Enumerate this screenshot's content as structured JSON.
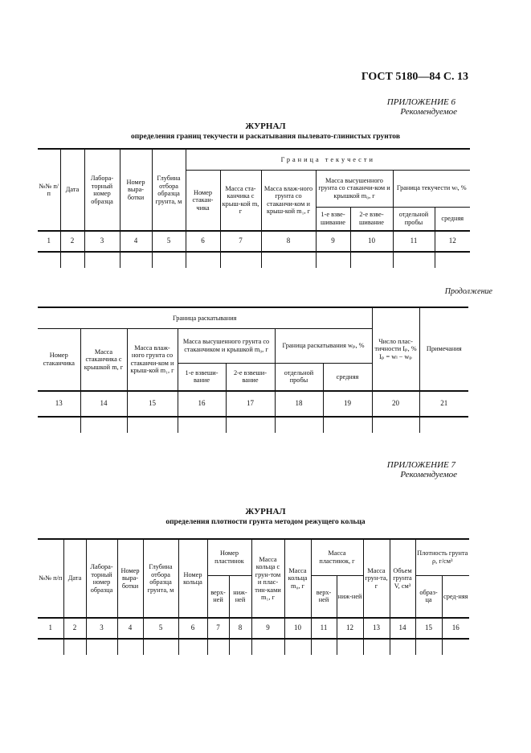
{
  "header": {
    "gost": "ГОСТ 5180—84 С. 13"
  },
  "appendix6": {
    "title": "ПРИЛОЖЕНИЕ 6",
    "note": "Рекомендуемое"
  },
  "journal1": {
    "title": "ЖУРНАЛ",
    "subtitle": "определения границ текучести и раскатывания пылевато-глинистых грунтов"
  },
  "table1": {
    "group": "Граница текучести",
    "cols": [
      "№№ п/п",
      "Дата",
      "Лабора-торный номер образца",
      "Номер выра-ботки",
      "Глубина отбора образца грунта, м",
      "Номер стакан-чика",
      "Масса ста-канчика с крыш-кой m, г",
      "Масса влаж-ного грунта со стаканчи-ком и крыш-кой m₁, г"
    ],
    "dry_mass": "Масса высушенного грунта со стаканчи-ком и крышкой m₀, г",
    "dry_sub": [
      "1-е взве-шивание",
      "2-е взве-шивание"
    ],
    "liquid_limit": "Граница текучести wₗ, %",
    "ll_sub": [
      "отдельной пробы",
      "средняя"
    ],
    "numbers": [
      "1",
      "2",
      "3",
      "4",
      "5",
      "6",
      "7",
      "8",
      "9",
      "10",
      "11",
      "12"
    ]
  },
  "continuation": "Продолжение",
  "table2": {
    "group": "Граница раскатывания",
    "cols": [
      "Номер стаканчика",
      "Масса стаканчика с крышкой m, г",
      "Масса влаж-ного грунта со стаканчи-ком и крыш-кой m₁, г"
    ],
    "dry_mass": "Масса высушенного грунта со стаканчиком и крышкой m₀, г",
    "dry_sub": [
      "1-е взвеши-вание",
      "2-е взвеши-вание"
    ],
    "plastic_limit": "Граница раскатывания wₚ, %",
    "pl_sub": [
      "отдельной пробы",
      "средняя"
    ],
    "plasticity": "Число плас-тичности Iₚ, % Iₚ = wₗ − wₚ",
    "notes": "Примечания",
    "numbers": [
      "13",
      "14",
      "15",
      "16",
      "17",
      "18",
      "19",
      "20",
      "21"
    ]
  },
  "appendix7": {
    "title": "ПРИЛОЖЕНИЕ 7",
    "note": "Рекомендуемое"
  },
  "journal2": {
    "title": "ЖУРНАЛ",
    "subtitle": "определения плотности грунта методом режущего кольца"
  },
  "table3": {
    "cols": [
      "№№ п/п",
      "Дата",
      "Лабора-торный номер образца",
      "Номер выра-ботки",
      "Глубина отбора образца грунта, м",
      "Номер кольца"
    ],
    "plates_no": "Номер пластинок",
    "plates_sub": [
      "верх-ней",
      "ниж-ней"
    ],
    "ring_mass": "Масса кольца с грун-том и плас-тин-ками m₁, г",
    "ring_empty": "Масса кольца m₀, г",
    "plates_mass": "Масса пластинок, г",
    "plates_mass_sub": [
      "верх-ней",
      "ниж-ней"
    ],
    "soil_mass": "Масса грун-та, г",
    "volume": "Объем грунта V, см³",
    "density": "Плотность грунта ρ, г/см³",
    "density_sub": [
      "образ-ца",
      "сред-няя"
    ],
    "numbers": [
      "1",
      "2",
      "3",
      "4",
      "5",
      "6",
      "7",
      "8",
      "9",
      "10",
      "11",
      "12",
      "13",
      "14",
      "15",
      "16"
    ]
  }
}
